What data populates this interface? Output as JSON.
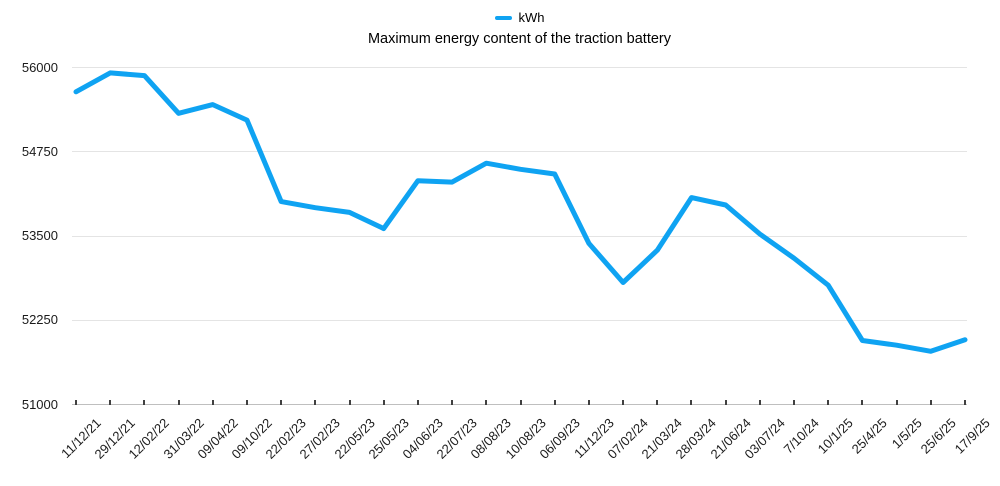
{
  "legend": {
    "label": "kWh",
    "swatch_color": "#0fa3f2"
  },
  "title": "Maximum energy content of the traction battery",
  "chart_data": {
    "type": "line",
    "title": "Maximum energy content of the traction battery",
    "xlabel": "",
    "ylabel": "",
    "ylim": [
      51000,
      56000
    ],
    "yticks": [
      56000,
      54750,
      53500,
      52250,
      51000
    ],
    "ytick_labels": [
      "56000",
      "54750",
      "53500",
      "52250",
      "51000"
    ],
    "grid": true,
    "legend_position": "top-center",
    "categories": [
      "11/12/21",
      "29/12/21",
      "12/02/22",
      "31/03/22",
      "09/04/22",
      "09/10/22",
      "22/02/23",
      "27/02/23",
      "22/05/23",
      "25/05/23",
      "04/06/23",
      "22/07/23",
      "08/08/23",
      "10/08/23",
      "06/09/23",
      "11/12/23",
      "07/02/24",
      "21/03/24",
      "28/03/24",
      "21/06/24",
      "03/07/24",
      "7/10/24",
      "10/1/25",
      "25/4/25",
      "1/5/25",
      "25/6/25",
      "17/9/25"
    ],
    "series": [
      {
        "name": "kWh",
        "color": "#0fa3f2",
        "values": [
          55640,
          55920,
          55880,
          55320,
          55450,
          55220,
          54010,
          53920,
          53850,
          53610,
          54320,
          54300,
          54580,
          54490,
          54420,
          53390,
          52810,
          53290,
          54070,
          53960,
          53530,
          53170,
          52770,
          51950,
          51880,
          51790,
          51960
        ]
      }
    ],
    "colors": {
      "gridline": "#e4e4e4",
      "axis_line": "#bfbfbf",
      "tick_mark": "#404040",
      "label_text": "#1b1b1b",
      "title_text": "#000000"
    }
  }
}
